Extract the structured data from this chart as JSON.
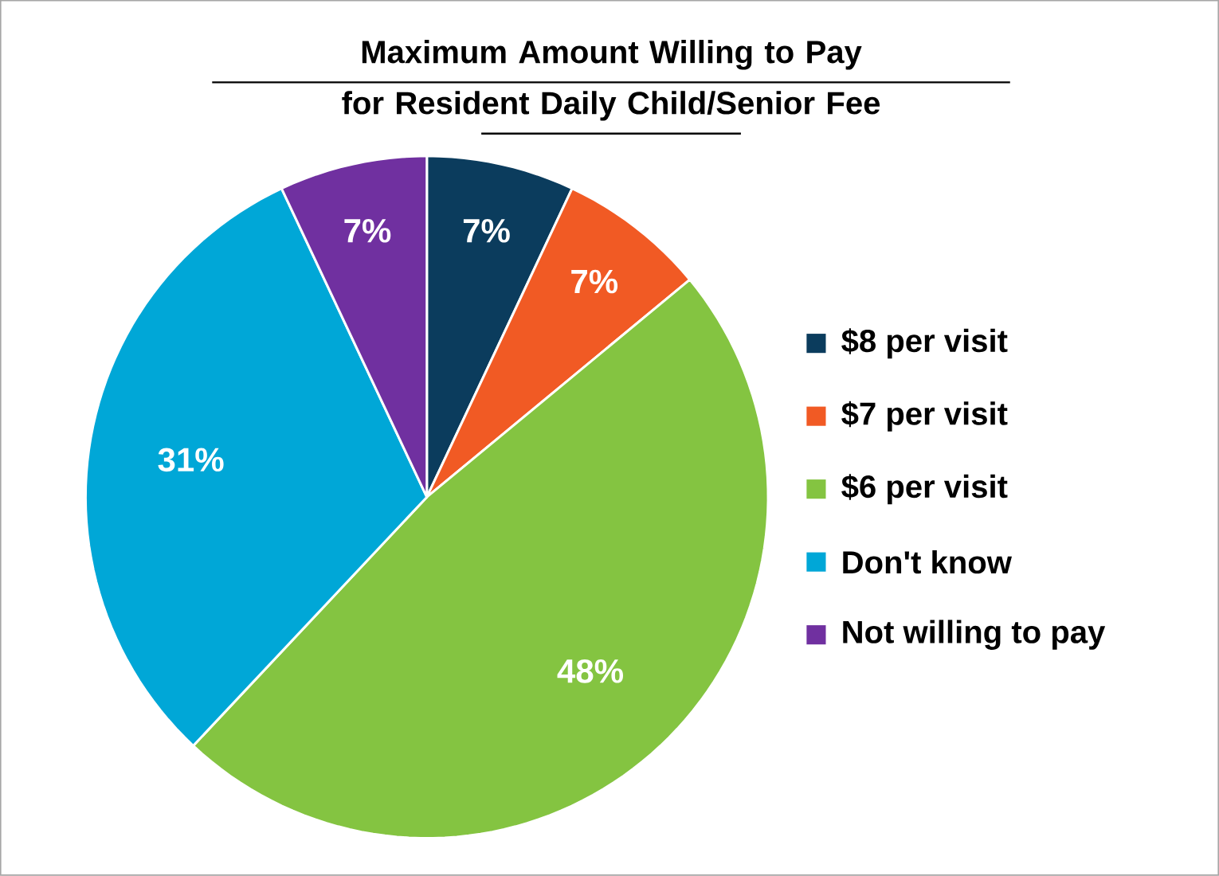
{
  "chart_data": {
    "type": "pie",
    "title": "Maximum Amount Willing to Pay for Resident Daily Child/Senior Fee",
    "categories": [
      "$8 per visit",
      "$7 per visit",
      "$6 per visit",
      "Don't know",
      "Not willing to pay"
    ],
    "values": [
      7,
      7,
      48,
      31,
      7
    ],
    "value_labels": [
      "7%",
      "7%",
      "48%",
      "31%",
      "7%"
    ],
    "colors": [
      "#0b3c5d",
      "#f15a24",
      "#84c441",
      "#00a7d7",
      "#7030a0"
    ],
    "legend": "right"
  }
}
